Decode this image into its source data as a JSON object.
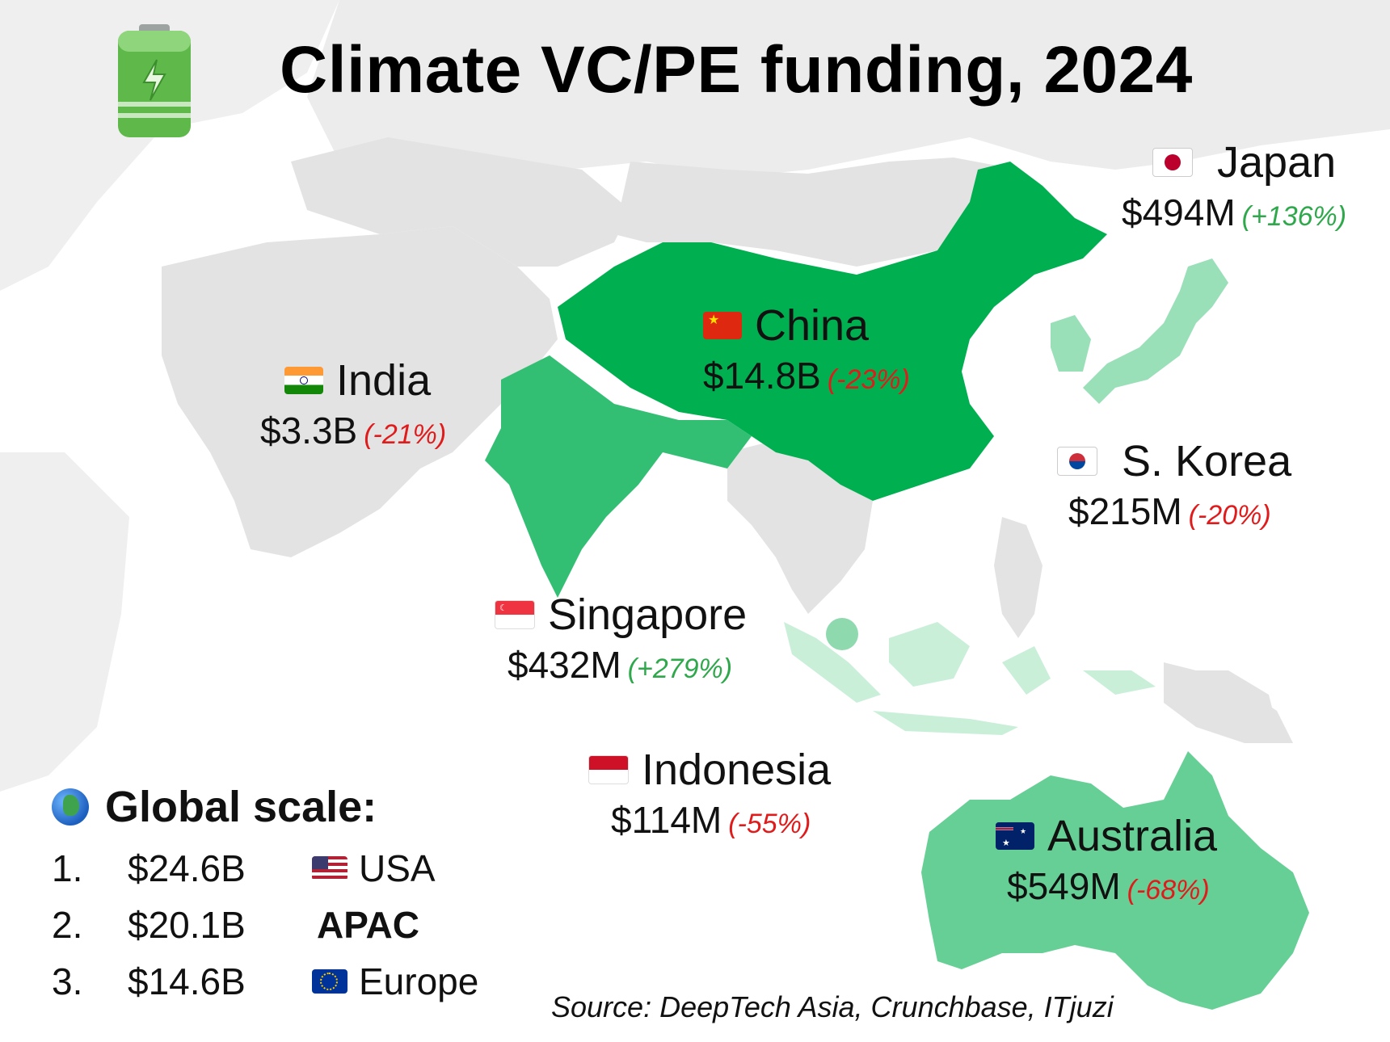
{
  "title": "Climate VC/PE funding, 2024",
  "icons": {
    "header": "battery-icon",
    "legend": "globe-icon"
  },
  "colors": {
    "land_gray": "#e3e3e3",
    "china": "#00b050",
    "india": "#33bf73",
    "australia": "#66cf95",
    "japan_korea": "#99dfb8",
    "indonesia": "#c9efd9",
    "singapore": "#8ed9ae",
    "negative": "#e01b1b",
    "positive": "#2ea84b"
  },
  "countries": [
    {
      "name": "China",
      "flag": "china-flag-icon",
      "amount": "$14.8B",
      "change": "(-23%)",
      "direction": "down"
    },
    {
      "name": "India",
      "flag": "india-flag-icon",
      "amount": "$3.3B",
      "change": "(-21%)",
      "direction": "down"
    },
    {
      "name": "Japan",
      "flag": "japan-flag-icon",
      "amount": "$494M",
      "change": "(+136%)",
      "direction": "up"
    },
    {
      "name": "S. Korea",
      "flag": "south-korea-flag-icon",
      "amount": "$215M",
      "change": "(-20%)",
      "direction": "down"
    },
    {
      "name": "Singapore",
      "flag": "singapore-flag-icon",
      "amount": "$432M",
      "change": "(+279%)",
      "direction": "up"
    },
    {
      "name": "Indonesia",
      "flag": "indonesia-flag-icon",
      "amount": "$114M",
      "change": "(-55%)",
      "direction": "down"
    },
    {
      "name": "Australia",
      "flag": "australia-flag-icon",
      "amount": "$549M",
      "change": "(-68%)",
      "direction": "down"
    }
  ],
  "legend": {
    "heading": "Global scale:",
    "ranks": [
      {
        "num": "1.",
        "amount": "$24.6B",
        "region": "USA",
        "flag": "usa-flag-icon"
      },
      {
        "num": "2.",
        "amount": "$20.1B",
        "region": "APAC",
        "flag": ""
      },
      {
        "num": "3.",
        "amount": "$14.6B",
        "region": "Europe",
        "flag": "eu-flag-icon"
      }
    ]
  },
  "source": "Source: DeepTech Asia, Crunchbase, ITjuzi"
}
